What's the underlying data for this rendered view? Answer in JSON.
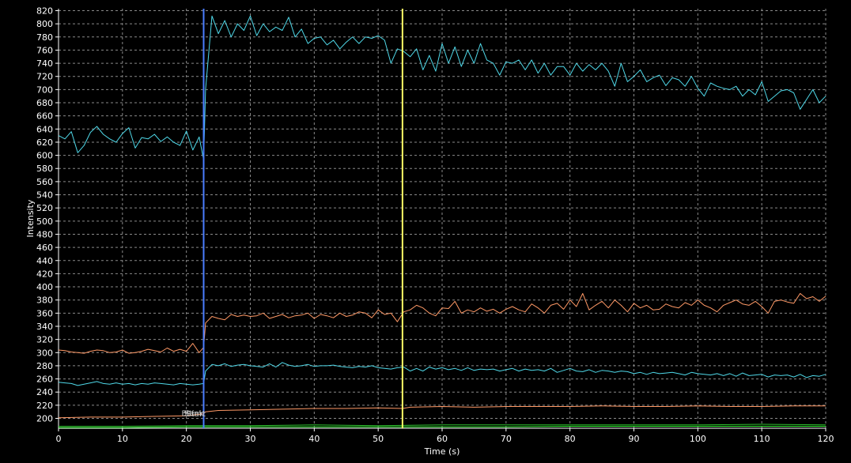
{
  "chart_data": {
    "type": "line",
    "xlabel": "Time (s)",
    "ylabel": "Intensity",
    "xlim": [
      0,
      120
    ],
    "ylim": [
      185,
      823
    ],
    "x_ticks": [
      0,
      10,
      20,
      30,
      40,
      50,
      60,
      70,
      80,
      90,
      100,
      110,
      120
    ],
    "y_ticks": [
      200,
      220,
      240,
      260,
      280,
      300,
      320,
      340,
      360,
      380,
      400,
      420,
      440,
      460,
      480,
      500,
      520,
      540,
      560,
      580,
      600,
      620,
      640,
      660,
      680,
      700,
      720,
      740,
      760,
      780,
      800,
      820
    ],
    "grid": true,
    "background": "#000000",
    "markers": [
      {
        "x": 22.7,
        "color": "#4a7dff",
        "labels": [
          "Blank",
          "Stim",
          "Start"
        ]
      },
      {
        "x": 53.8,
        "color": "#ffff66",
        "labels": []
      }
    ],
    "series": [
      {
        "color": "#4fd8e8",
        "x": [
          0,
          1,
          2,
          3,
          4,
          5,
          6,
          7,
          8,
          9,
          10,
          11,
          12,
          13,
          14,
          15,
          16,
          17,
          18,
          19,
          20,
          21,
          22,
          22.7,
          23,
          24,
          25,
          26,
          27,
          28,
          29,
          30,
          31,
          32,
          33,
          34,
          35,
          36,
          37,
          38,
          39,
          40,
          41,
          42,
          43,
          44,
          45,
          46,
          47,
          48,
          49,
          50,
          51,
          52,
          53,
          54,
          55,
          56,
          57,
          58,
          59,
          60,
          61,
          62,
          63,
          64,
          65,
          66,
          67,
          68,
          69,
          70,
          71,
          72,
          73,
          74,
          75,
          76,
          77,
          78,
          79,
          80,
          81,
          82,
          83,
          84,
          85,
          86,
          87,
          88,
          89,
          90,
          91,
          92,
          93,
          94,
          95,
          96,
          97,
          98,
          99,
          100,
          101,
          102,
          103,
          104,
          105,
          106,
          107,
          108,
          109,
          110,
          111,
          112,
          113,
          114,
          115,
          116,
          117,
          118,
          119,
          120
        ],
        "y": [
          630,
          625,
          636,
          604,
          615,
          635,
          644,
          632,
          625,
          620,
          633,
          642,
          611,
          627,
          625,
          632,
          621,
          628,
          620,
          615,
          637,
          608,
          628,
          593,
          700,
          812,
          785,
          805,
          780,
          800,
          790,
          812,
          782,
          800,
          788,
          795,
          790,
          810,
          780,
          792,
          770,
          778,
          780,
          768,
          775,
          762,
          772,
          780,
          770,
          780,
          778,
          782,
          775,
          740,
          762,
          758,
          750,
          762,
          730,
          752,
          728,
          770,
          740,
          765,
          735,
          760,
          740,
          770,
          745,
          740,
          722,
          742,
          740,
          745,
          730,
          745,
          725,
          740,
          722,
          735,
          735,
          722,
          740,
          728,
          738,
          730,
          740,
          728,
          705,
          740,
          712,
          720,
          730,
          712,
          718,
          722,
          706,
          718,
          715,
          705,
          720,
          702,
          690,
          710,
          705,
          702,
          700,
          705,
          690,
          700,
          692,
          712,
          682,
          690,
          698,
          700,
          695,
          670,
          685,
          700,
          680,
          690
        ]
      },
      {
        "color": "#ff9966",
        "x": [
          0,
          1,
          2,
          3,
          4,
          5,
          6,
          7,
          8,
          9,
          10,
          11,
          12,
          13,
          14,
          15,
          16,
          17,
          18,
          19,
          20,
          21,
          22,
          22.7,
          23,
          24,
          25,
          26,
          27,
          28,
          29,
          30,
          31,
          32,
          33,
          34,
          35,
          36,
          37,
          38,
          39,
          40,
          41,
          42,
          43,
          44,
          45,
          46,
          47,
          48,
          49,
          50,
          51,
          52,
          53,
          54,
          55,
          56,
          57,
          58,
          59,
          60,
          61,
          62,
          63,
          64,
          65,
          66,
          67,
          68,
          69,
          70,
          71,
          72,
          73,
          74,
          75,
          76,
          77,
          78,
          79,
          80,
          81,
          82,
          83,
          84,
          85,
          86,
          87,
          88,
          89,
          90,
          91,
          92,
          93,
          94,
          95,
          96,
          97,
          98,
          99,
          100,
          101,
          102,
          103,
          104,
          105,
          106,
          107,
          108,
          109,
          110,
          111,
          112,
          113,
          114,
          115,
          116,
          117,
          118,
          119,
          120
        ],
        "y": [
          304,
          303,
          301,
          300,
          299,
          302,
          304,
          303,
          300,
          301,
          304,
          299,
          300,
          302,
          305,
          303,
          301,
          307,
          302,
          305,
          302,
          314,
          300,
          308,
          345,
          355,
          352,
          350,
          358,
          355,
          357,
          355,
          356,
          360,
          352,
          355,
          358,
          353,
          356,
          357,
          360,
          352,
          358,
          356,
          353,
          360,
          355,
          357,
          362,
          360,
          353,
          365,
          358,
          360,
          347,
          362,
          365,
          372,
          368,
          360,
          356,
          368,
          367,
          378,
          360,
          365,
          362,
          368,
          363,
          366,
          360,
          366,
          370,
          365,
          362,
          374,
          368,
          360,
          372,
          375,
          366,
          380,
          370,
          390,
          365,
          372,
          378,
          368,
          380,
          372,
          362,
          375,
          368,
          372,
          365,
          366,
          374,
          370,
          368,
          376,
          372,
          380,
          372,
          368,
          362,
          372,
          376,
          380,
          374,
          372,
          378,
          370,
          360,
          378,
          380,
          377,
          375,
          390,
          382,
          385,
          378,
          386
        ]
      },
      {
        "color": "#4fd8e8",
        "x": [
          0,
          1,
          2,
          3,
          4,
          5,
          6,
          7,
          8,
          9,
          10,
          11,
          12,
          13,
          14,
          15,
          16,
          17,
          18,
          19,
          20,
          21,
          22,
          22.7,
          23,
          24,
          25,
          26,
          27,
          28,
          29,
          30,
          31,
          32,
          33,
          34,
          35,
          36,
          37,
          38,
          39,
          40,
          41,
          42,
          43,
          44,
          45,
          46,
          47,
          48,
          49,
          50,
          51,
          52,
          53,
          54,
          55,
          56,
          57,
          58,
          59,
          60,
          61,
          62,
          63,
          64,
          65,
          66,
          67,
          68,
          69,
          70,
          71,
          72,
          73,
          74,
          75,
          76,
          77,
          78,
          79,
          80,
          81,
          82,
          83,
          84,
          85,
          86,
          87,
          88,
          89,
          90,
          91,
          92,
          93,
          94,
          95,
          96,
          97,
          98,
          99,
          100,
          101,
          102,
          103,
          104,
          105,
          106,
          107,
          108,
          109,
          110,
          111,
          112,
          113,
          114,
          115,
          116,
          117,
          118,
          119,
          120
        ],
        "y": [
          255,
          254,
          253,
          250,
          252,
          254,
          256,
          253,
          252,
          254,
          252,
          253,
          251,
          253,
          252,
          254,
          253,
          252,
          251,
          253,
          252,
          251,
          252,
          253,
          272,
          282,
          280,
          283,
          279,
          281,
          282,
          280,
          279,
          278,
          283,
          278,
          285,
          281,
          279,
          280,
          282,
          279,
          280,
          280,
          281,
          279,
          278,
          277,
          279,
          278,
          280,
          277,
          276,
          275,
          277,
          278,
          272,
          276,
          272,
          278,
          275,
          277,
          274,
          276,
          273,
          277,
          273,
          275,
          274,
          275,
          272,
          274,
          276,
          272,
          275,
          273,
          274,
          272,
          276,
          270,
          273,
          276,
          272,
          271,
          274,
          270,
          273,
          272,
          270,
          272,
          271,
          268,
          270,
          267,
          270,
          268,
          269,
          270,
          268,
          266,
          270,
          268,
          267,
          266,
          268,
          265,
          268,
          264,
          269,
          265,
          266,
          267,
          263,
          266,
          265,
          266,
          263,
          267,
          262,
          265,
          264,
          267
        ]
      },
      {
        "color": "#ff9966",
        "x": [
          0,
          5,
          10,
          15,
          20,
          22.7,
          23,
          25,
          30,
          35,
          40,
          45,
          50,
          53.8,
          55,
          60,
          65,
          70,
          75,
          80,
          85,
          90,
          95,
          100,
          105,
          110,
          115,
          120
        ],
        "y": [
          201,
          202,
          202,
          203,
          204,
          207,
          210,
          212,
          213,
          214,
          215,
          215,
          216,
          215,
          217,
          218,
          217,
          218,
          218,
          218,
          219,
          218,
          218,
          219,
          218,
          218,
          219,
          219
        ]
      },
      {
        "color": "#33ee33",
        "x": [
          0,
          10,
          20,
          30,
          40,
          50,
          60,
          70,
          80,
          90,
          100,
          110,
          120
        ],
        "y": [
          186,
          186,
          187,
          187,
          187,
          187,
          187,
          187,
          188,
          188,
          188,
          188,
          188
        ]
      },
      {
        "color": "#2fbf2f",
        "x": [
          0,
          10,
          20,
          30,
          40,
          50,
          60,
          70,
          80,
          90,
          100,
          110,
          120
        ],
        "y": [
          188,
          188,
          189,
          189,
          190,
          189,
          190,
          190,
          190,
          190,
          190,
          191,
          190
        ]
      }
    ]
  }
}
